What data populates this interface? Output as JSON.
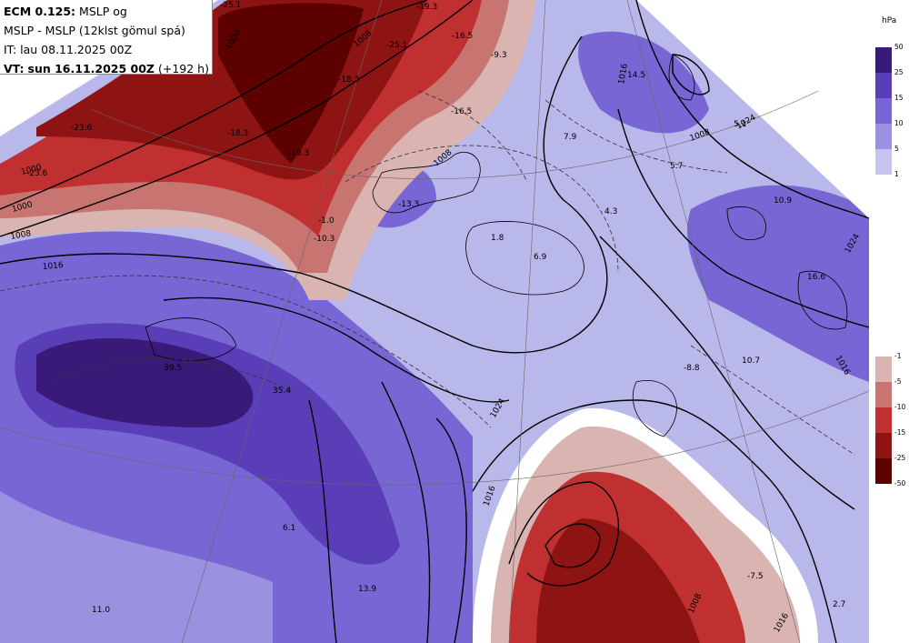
{
  "header": {
    "model": "ECM 0.125:",
    "model_suffix": "MSLP og",
    "line2": "MSLP - MSLP (12klst gömul spá)",
    "init": "IT: lau 08.11.2025 00Z",
    "valid_prefix": "VT:",
    "valid": "sun 16.11.2025 00Z",
    "lead": "(+192 h)"
  },
  "legend": {
    "unit": "hPa",
    "positive": [
      {
        "tick": "50",
        "color": "#3a1a78"
      },
      {
        "tick": "25",
        "color": "#5a3eb8"
      },
      {
        "tick": "15",
        "color": "#7766d4"
      },
      {
        "tick": "10",
        "color": "#9a92e0"
      },
      {
        "tick": "5",
        "color": "#c6c4ee"
      },
      {
        "tick": "1",
        "color": ""
      }
    ],
    "negative": [
      {
        "tick": "-1",
        "color": "#d9b4b0"
      },
      {
        "tick": "-5",
        "color": "#c87470"
      },
      {
        "tick": "-10",
        "color": "#c03030"
      },
      {
        "tick": "-15",
        "color": "#8e1414"
      },
      {
        "tick": "-25",
        "color": "#5c0000"
      },
      {
        "tick": "-50",
        "color": ""
      }
    ]
  },
  "labels": {
    "diff": [
      "-23.6",
      "-25.1",
      "-19.3",
      "-25.1",
      "-18.3",
      "-16.5",
      "-16.5",
      "-19.3",
      "-23.6",
      "-18.3",
      "-10.3",
      "-13.3",
      "-1.0",
      "-9.3",
      "7.9",
      "4.3",
      "1.8",
      "6.9",
      "14.5",
      "5.1",
      "5.7",
      "10.9",
      "16.6",
      "-8.8",
      "10.7",
      "39.5",
      "35.4",
      "6.1",
      "13.9",
      "11.0",
      "-7.5",
      "2.7"
    ],
    "isobars": [
      "1000",
      "1000",
      "1008",
      "1016",
      "1024",
      "1016",
      "1016",
      "1024",
      "1000",
      "1008",
      "1008",
      "1016",
      "1024",
      "1016",
      "1008",
      "1008"
    ]
  },
  "colors": {
    "coast": "#000000",
    "isobar": "#000000",
    "background": "#ffffff"
  }
}
